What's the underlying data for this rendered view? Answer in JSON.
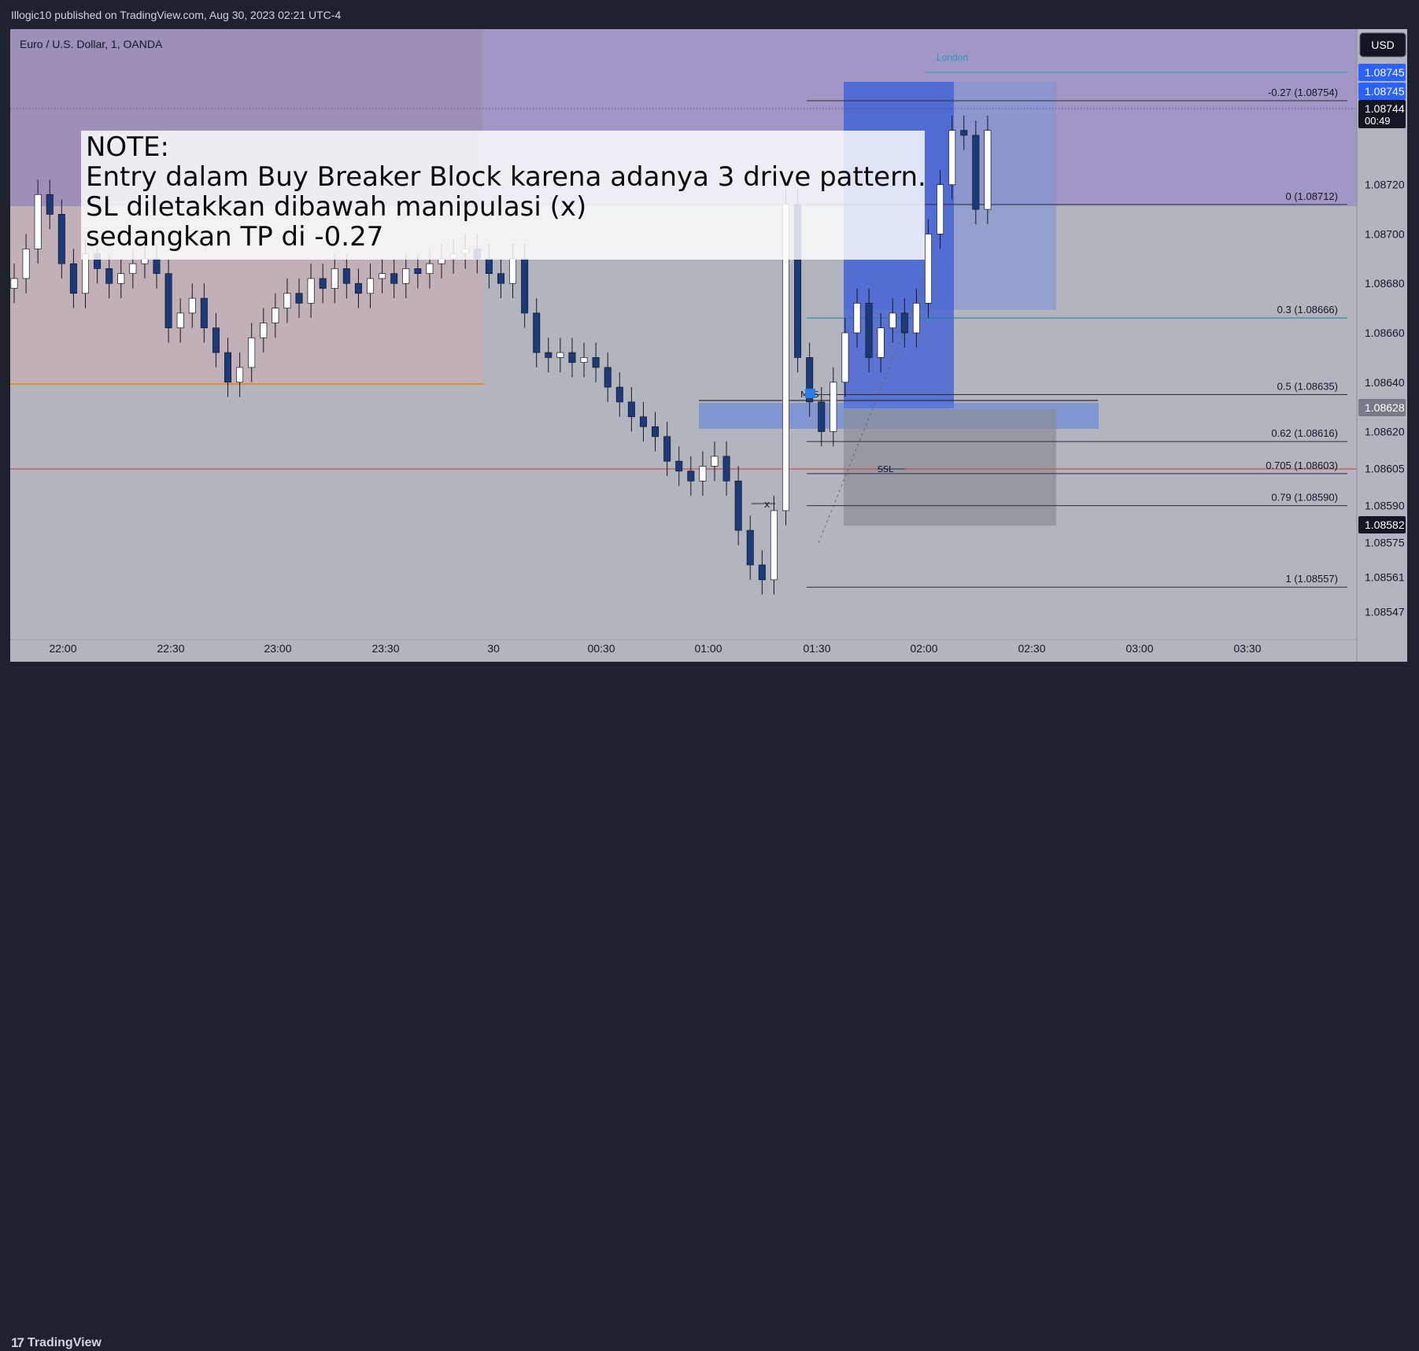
{
  "header": {
    "published": "Illogic10 published on TradingView.com, Aug 30, 2023 02:21 UTC-4"
  },
  "symbol": {
    "label": "Euro / U.S. Dollar, 1, OANDA"
  },
  "currency_button": "USD",
  "session_label": "London",
  "note": {
    "lines": [
      "NOTE:",
      "Entry dalam Buy Breaker Block karena adanya 3 drive pattern.",
      "SL diletakkan dibawah manipulasi (x)",
      "sedangkan TP di -0.27"
    ]
  },
  "annotations": {
    "mss": "MSS",
    "ssl": "SSL",
    "x": "x"
  },
  "footer": {
    "brand": "TradingView"
  },
  "colors": {
    "page_bg": "#1e222d",
    "chart_bg": "#b2b5be",
    "candle_up": "#ffffff",
    "candle_down": "#1c3a7a",
    "fib_line": "#2a2e39",
    "zone_purple": "#9c8fc8",
    "zone_pink": "#e9b9c0",
    "zone_blue": "#3d5ed6",
    "price_tag_blue": "#2962ff",
    "red_line": "#e0313a",
    "orange_line": "#f57c00",
    "teal_line": "#089981"
  },
  "chart_data": {
    "type": "candlestick",
    "title": "Euro / U.S. Dollar, 1, OANDA",
    "x_ticks": [
      "22:00",
      "22:30",
      "23:00",
      "23:30",
      "30",
      "00:30",
      "01:00",
      "01:30",
      "02:00",
      "02:30",
      "03:00",
      "03:30"
    ],
    "y_ticks": [
      1.08547,
      1.08561,
      1.08575,
      1.0859,
      1.08605,
      1.0862,
      1.0864,
      1.0866,
      1.0868,
      1.087,
      1.0872
    ],
    "ylim": [
      1.08537,
      1.08783
    ],
    "price_labels": [
      {
        "value": 1.08745,
        "text": "1.08745",
        "style": "blue"
      },
      {
        "value": 1.08745,
        "text": "1.08745",
        "style": "blue2"
      },
      {
        "value": 1.08744,
        "text": "1.08744",
        "sub": "00:49",
        "style": "black"
      },
      {
        "value": 1.08628,
        "text": "1.08628",
        "style": "grey"
      },
      {
        "value": 1.08582,
        "text": "1.08582",
        "style": "black"
      }
    ],
    "fib_levels": [
      {
        "label": "-0.27 (1.08754)",
        "value": 1.08754
      },
      {
        "label": "0 (1.08712)",
        "value": 1.08712
      },
      {
        "label": "0.3 (1.08666)",
        "value": 1.08666
      },
      {
        "label": "0.5 (1.08635)",
        "value": 1.08635
      },
      {
        "label": "0.62 (1.08616)",
        "value": 1.08616
      },
      {
        "label": "0.705 (1.08603)",
        "value": 1.08603
      },
      {
        "label": "0.79 (1.08590)",
        "value": 1.0859
      },
      {
        "label": "1 (1.08557)",
        "value": 1.08557
      }
    ],
    "candles_close_path": [
      1.08682,
      1.08694,
      1.08716,
      1.08708,
      1.08688,
      1.08676,
      1.08692,
      1.08686,
      1.0868,
      1.08684,
      1.08688,
      1.0869,
      1.08684,
      1.08662,
      1.08668,
      1.08674,
      1.08662,
      1.08652,
      1.0864,
      1.08646,
      1.08658,
      1.08664,
      1.0867,
      1.08676,
      1.08672,
      1.08682,
      1.08678,
      1.08686,
      1.0868,
      1.08676,
      1.08682,
      1.08684,
      1.0868,
      1.08686,
      1.08684,
      1.08688,
      1.0869,
      1.08692,
      1.08694,
      1.0869,
      1.08684,
      1.0868,
      1.0869,
      1.08668,
      1.08652,
      1.0865,
      1.08652,
      1.08648,
      1.0865,
      1.08646,
      1.08638,
      1.08632,
      1.08626,
      1.08622,
      1.08618,
      1.08608,
      1.08604,
      1.086,
      1.08606,
      1.0861,
      1.086,
      1.0858,
      1.08566,
      1.0856,
      1.08588,
      1.08712,
      1.0865,
      1.08632,
      1.0862,
      1.0864,
      1.0866,
      1.08672,
      1.0865,
      1.08662,
      1.08668,
      1.0866,
      1.08672,
      1.087,
      1.0872,
      1.08742,
      1.0874,
      1.0871,
      1.08742
    ]
  }
}
